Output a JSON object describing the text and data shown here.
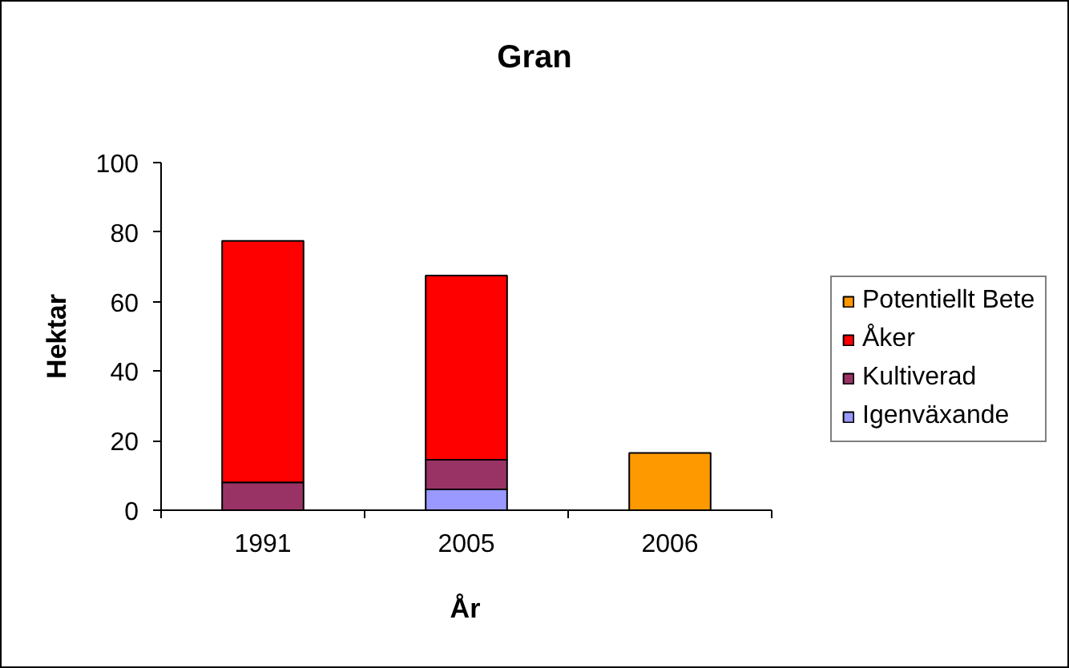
{
  "chart_data": {
    "type": "bar",
    "title": "Gran",
    "xlabel": "År",
    "ylabel": "Hektar",
    "categories": [
      "1991",
      "2005",
      "2006"
    ],
    "stacked": true,
    "series": [
      {
        "name": "Igenväxande",
        "color": "#9999ff",
        "values": [
          null,
          6,
          null
        ]
      },
      {
        "name": "Kultiverad",
        "color": "#993366",
        "values": [
          8,
          8.5,
          null
        ]
      },
      {
        "name": "Åker",
        "color": "#ff0000",
        "values": [
          69.5,
          53,
          null
        ]
      },
      {
        "name": "Potentiellt Bete",
        "color": "#ff9900",
        "values": [
          null,
          null,
          16.5
        ]
      }
    ],
    "ylim": [
      0,
      100
    ],
    "yticks": [
      0,
      20,
      40,
      60,
      80,
      100
    ],
    "legend": "right"
  }
}
